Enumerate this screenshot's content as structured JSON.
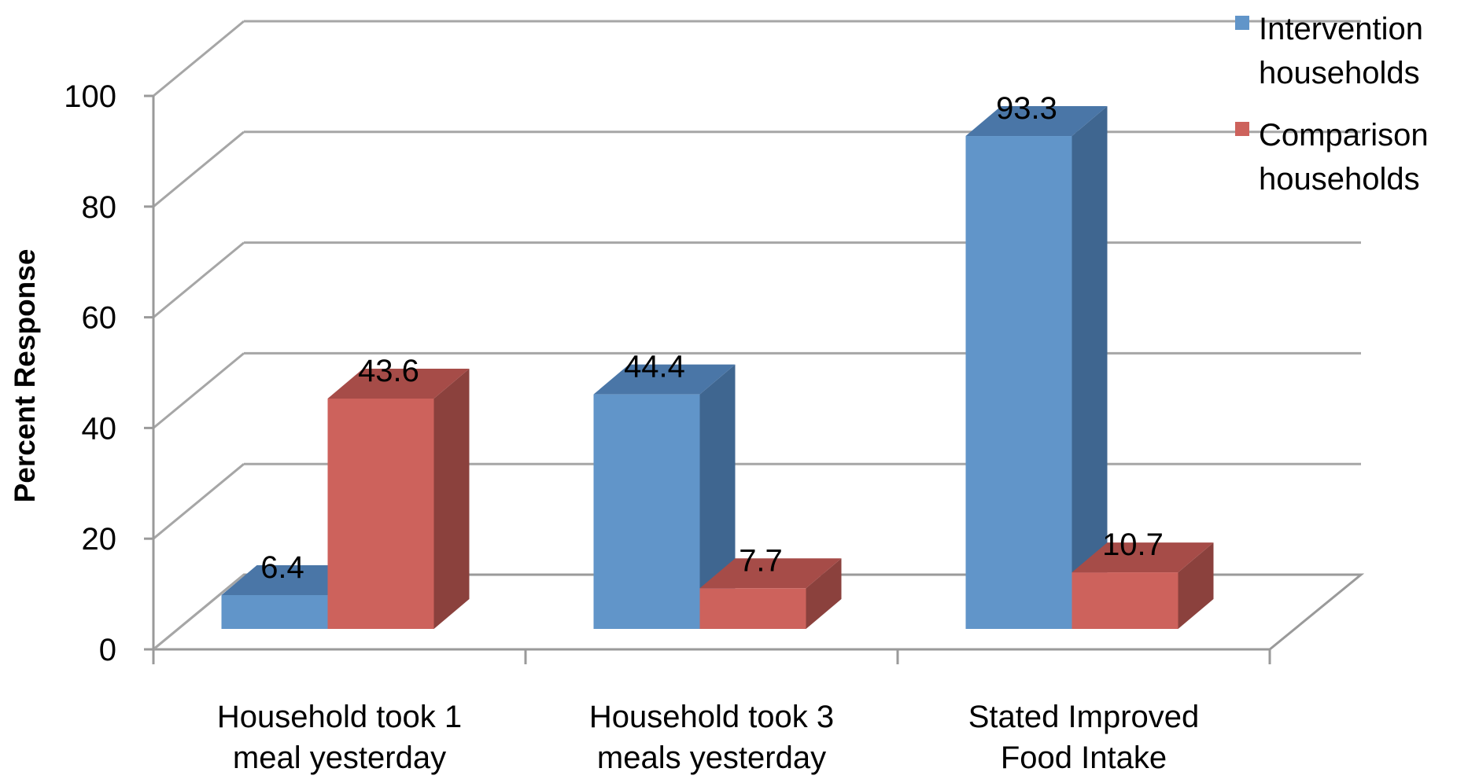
{
  "chart_data": {
    "type": "bar",
    "title": "",
    "xlabel": "",
    "ylabel": "Percent Response",
    "ylim": [
      0,
      100
    ],
    "yticks": [
      0,
      20,
      40,
      60,
      80,
      100
    ],
    "grid": true,
    "three_d": true,
    "legend_position": "top-right",
    "categories": [
      "Household took 1 meal yesterday",
      "Household took 3 meals yesterday",
      "Stated Improved Food Intake"
    ],
    "category_lines": [
      [
        "Household took 1",
        "meal yesterday"
      ],
      [
        "Household took 3",
        "meals yesterday"
      ],
      [
        "Stated Improved",
        "Food Intake"
      ]
    ],
    "series": [
      {
        "name": "Intervention households",
        "legend_lines": [
          "Intervention",
          "households"
        ],
        "values": [
          6.4,
          44.4,
          93.3
        ],
        "value_labels": [
          "6.4",
          "44.4",
          "93.3"
        ],
        "color": "#6195c9",
        "top_color": "#4a76a7",
        "side_color": "#3f6690"
      },
      {
        "name": "Comparison households",
        "legend_lines": [
          "Comparison",
          "households"
        ],
        "values": [
          43.6,
          7.7,
          10.7
        ],
        "value_labels": [
          "43.6",
          "7.7",
          "10.7"
        ],
        "color": "#cd625c",
        "top_color": "#a64c48",
        "side_color": "#8b413d"
      }
    ]
  }
}
